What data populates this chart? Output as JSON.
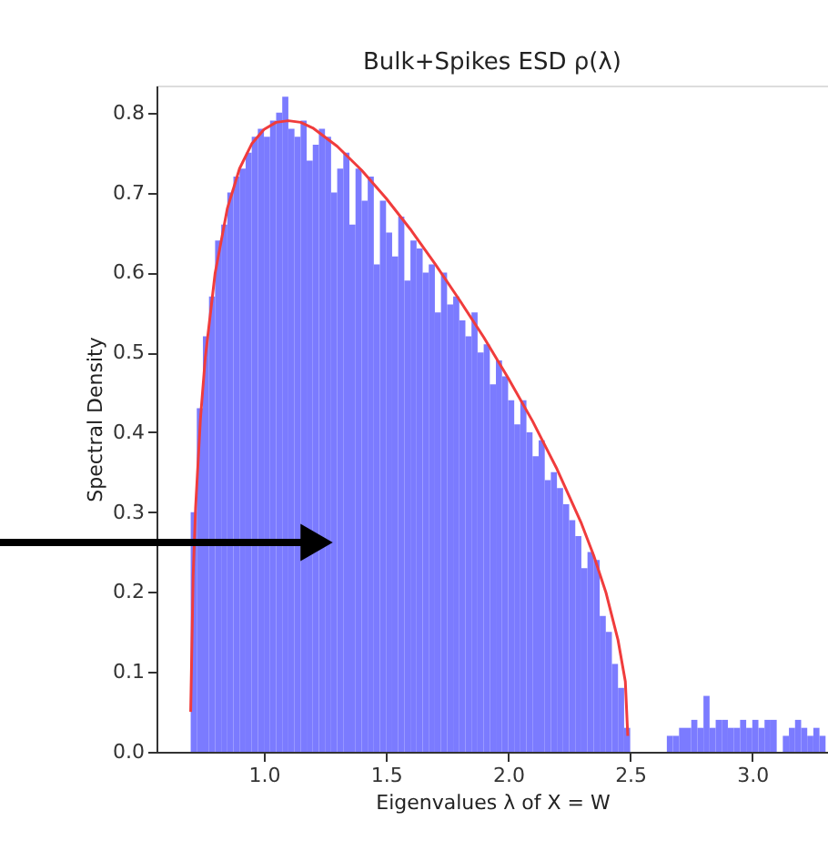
{
  "chart_data": {
    "type": "histogram",
    "title": "Bulk+Spikes ESD ρ(λ)",
    "xlabel": "Eigenvalues λ of X = W",
    "ylabel": "Spectral Density",
    "bins": [
      0.7,
      0.725,
      0.75,
      0.775,
      0.8,
      0.825,
      0.85,
      0.875,
      0.9,
      0.925,
      0.95,
      0.975,
      1.0,
      1.025,
      1.05,
      1.075,
      1.1,
      1.125,
      1.15,
      1.175,
      1.2,
      1.225,
      1.25,
      1.275,
      1.3,
      1.325,
      1.35,
      1.375,
      1.4,
      1.425,
      1.45,
      1.475,
      1.5,
      1.525,
      1.55,
      1.575,
      1.6,
      1.625,
      1.65,
      1.675,
      1.7,
      1.725,
      1.75,
      1.775,
      1.8,
      1.825,
      1.85,
      1.875,
      1.9,
      1.925,
      1.95,
      1.975,
      2.0,
      2.025,
      2.05,
      2.075,
      2.1,
      2.125,
      2.15,
      2.175,
      2.2,
      2.225,
      2.25,
      2.275,
      2.3,
      2.325,
      2.35,
      2.375,
      2.4,
      2.425,
      2.45,
      2.475,
      2.5,
      2.525,
      2.55,
      2.575,
      2.6,
      2.625,
      2.65,
      2.675,
      2.7,
      2.725,
      2.75,
      2.775,
      2.8,
      2.825,
      2.85,
      2.875,
      2.9,
      2.925,
      2.95,
      2.975,
      3.0,
      3.025,
      3.05,
      3.075,
      3.1,
      3.125,
      3.15,
      3.175,
      3.2,
      3.225,
      3.25,
      3.275,
      3.3
    ],
    "series": [
      {
        "color": "#7b7bff",
        "values": [
          0.3,
          0.43,
          0.52,
          0.57,
          0.64,
          0.66,
          0.7,
          0.72,
          0.73,
          0.75,
          0.77,
          0.78,
          0.77,
          0.79,
          0.8,
          0.82,
          0.78,
          0.77,
          0.79,
          0.74,
          0.76,
          0.78,
          0.77,
          0.7,
          0.73,
          0.75,
          0.66,
          0.73,
          0.69,
          0.72,
          0.61,
          0.69,
          0.65,
          0.62,
          0.67,
          0.59,
          0.64,
          0.63,
          0.6,
          0.61,
          0.55,
          0.6,
          0.56,
          0.57,
          0.54,
          0.52,
          0.55,
          0.5,
          0.51,
          0.46,
          0.49,
          0.47,
          0.44,
          0.41,
          0.44,
          0.4,
          0.37,
          0.39,
          0.34,
          0.35,
          0.33,
          0.31,
          0.29,
          0.27,
          0.23,
          0.25,
          0.24,
          0.17,
          0.15,
          0.11,
          0.08,
          0.03,
          0,
          0,
          0,
          0,
          0,
          0,
          0.02,
          0.02,
          0.03,
          0.03,
          0.04,
          0.03,
          0.07,
          0.03,
          0.04,
          0.04,
          0.03,
          0.03,
          0.04,
          0.03,
          0.04,
          0.03,
          0.04,
          0.04,
          0,
          0.02,
          0.03,
          0.04,
          0.03,
          0.02,
          0.03,
          0.02
        ]
      },
      {
        "type": "line",
        "color": "#f03c3c",
        "x": [
          0.7,
          0.71,
          0.72,
          0.74,
          0.76,
          0.8,
          0.85,
          0.9,
          0.95,
          1.0,
          1.05,
          1.1,
          1.15,
          1.2,
          1.3,
          1.4,
          1.5,
          1.6,
          1.7,
          1.8,
          1.9,
          2.0,
          2.1,
          2.2,
          2.3,
          2.35,
          2.4,
          2.45,
          2.48,
          2.49
        ],
        "values": [
          0.05,
          0.22,
          0.305,
          0.417,
          0.494,
          0.599,
          0.68,
          0.73,
          0.761,
          0.779,
          0.788,
          0.79,
          0.788,
          0.781,
          0.758,
          0.728,
          0.693,
          0.654,
          0.611,
          0.566,
          0.519,
          0.468,
          0.414,
          0.354,
          0.286,
          0.246,
          0.2,
          0.14,
          0.088,
          0.02
        ]
      }
    ],
    "xlim": [
      0.56,
      3.31
    ],
    "ylim": [
      0,
      0.834
    ],
    "xticks": [
      {
        "value": 1,
        "label": "1.0"
      },
      {
        "value": 1.5,
        "label": "1.5"
      },
      {
        "value": 2,
        "label": "2.0"
      },
      {
        "value": 2.5,
        "label": "2.5"
      },
      {
        "value": 3,
        "label": "3.0"
      }
    ],
    "yticks": [
      {
        "value": 0,
        "label": "0.0"
      },
      0.1,
      0.2,
      0.3,
      0.4,
      0.5,
      0.6,
      0.7,
      0.8
    ],
    "grid": false
  }
}
